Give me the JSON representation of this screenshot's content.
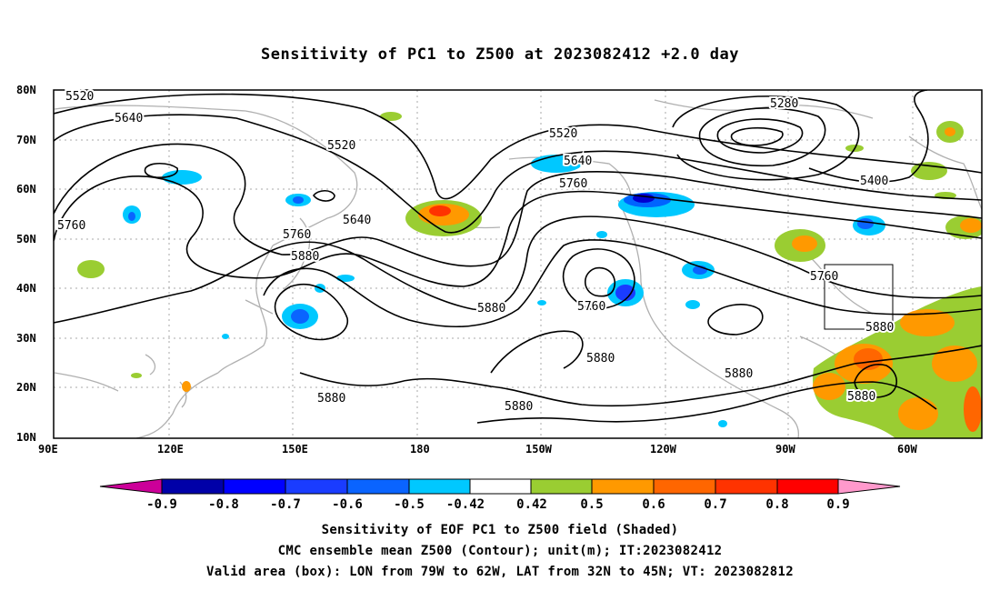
{
  "title": "Sensitivity of PC1 to Z500 at 2023082412 +2.0 day",
  "lat_labels": [
    "80N",
    "70N",
    "60N",
    "50N",
    "40N",
    "30N",
    "20N",
    "10N"
  ],
  "lon_labels": [
    "90E",
    "120E",
    "150E",
    "180",
    "150W",
    "120W",
    "90W",
    "60W"
  ],
  "contour_labels": [
    "5520",
    "5640",
    "5520",
    "5760",
    "5640",
    "5760",
    "5880",
    "5520",
    "5640",
    "5760",
    "5880",
    "5760",
    "5880",
    "5880",
    "5880",
    "5280",
    "5400",
    "5760",
    "5880",
    "5880",
    "5880"
  ],
  "colorbar": {
    "labels": [
      "-0.9",
      "-0.8",
      "-0.7",
      "-0.6",
      "-0.5",
      "-0.42",
      "0.42",
      "0.5",
      "0.6",
      "0.7",
      "0.8",
      "0.9"
    ],
    "colors": [
      "#cc0099",
      "#0000a8",
      "#0000ff",
      "#1a3cff",
      "#0a64ff",
      "#0094ff",
      "#00c8ff",
      "#ffffff",
      "#9acd32",
      "#ff9900",
      "#ff6600",
      "#ff3300",
      "#ff0000",
      "#ff99cc"
    ]
  },
  "footer": [
    "Sensitivity of EOF PC1 to Z500 field (Shaded)",
    "CMC ensemble mean Z500 (Contour); unit(m); IT:2023082412",
    "Valid area (box): LON from 79W to 62W, LAT from 32N to 45N; VT: 2023082812"
  ]
}
